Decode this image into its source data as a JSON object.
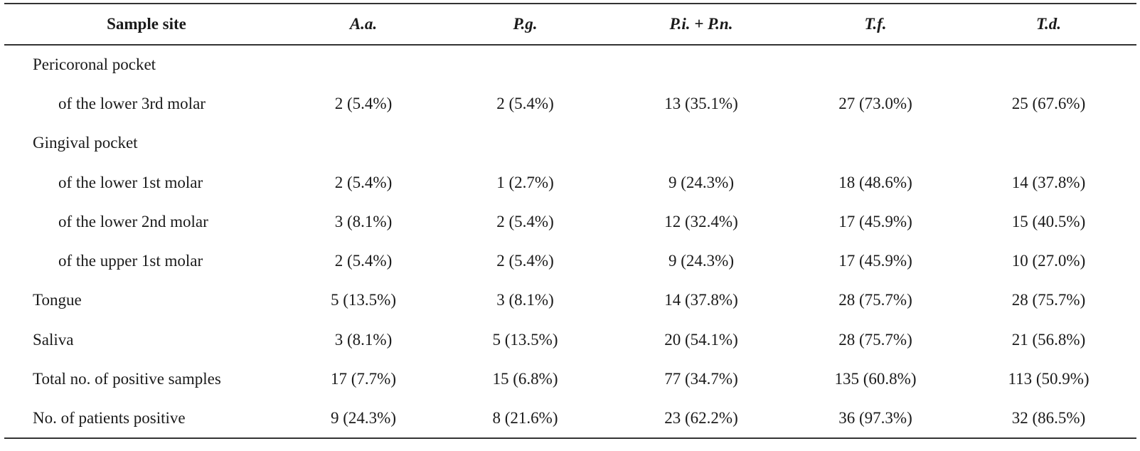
{
  "table": {
    "headers": [
      "Sample site",
      "A.a.",
      "P.g.",
      "P.i. + P.n.",
      "T.f.",
      "T.d."
    ],
    "rows": [
      {
        "label": "Pericoronal pocket",
        "indent": false,
        "values": [
          "",
          "",
          "",
          "",
          ""
        ]
      },
      {
        "label": "of the lower 3rd molar",
        "indent": true,
        "values": [
          "2 (5.4%)",
          "2 (5.4%)",
          "13 (35.1%)",
          "27 (73.0%)",
          "25 (67.6%)"
        ]
      },
      {
        "label": "Gingival pocket",
        "indent": false,
        "values": [
          "",
          "",
          "",
          "",
          ""
        ]
      },
      {
        "label": "of the lower 1st molar",
        "indent": true,
        "values": [
          "2 (5.4%)",
          "1 (2.7%)",
          "9 (24.3%)",
          "18 (48.6%)",
          "14 (37.8%)"
        ]
      },
      {
        "label": "of the lower 2nd molar",
        "indent": true,
        "values": [
          "3 (8.1%)",
          "2 (5.4%)",
          "12 (32.4%)",
          "17 (45.9%)",
          "15 (40.5%)"
        ]
      },
      {
        "label": "of the upper 1st molar",
        "indent": true,
        "values": [
          "2 (5.4%)",
          "2 (5.4%)",
          "9 (24.3%)",
          "17 (45.9%)",
          "10 (27.0%)"
        ]
      },
      {
        "label": "Tongue",
        "indent": false,
        "values": [
          "5 (13.5%)",
          "3 (8.1%)",
          "14 (37.8%)",
          "28 (75.7%)",
          "28 (75.7%)"
        ]
      },
      {
        "label": "Saliva",
        "indent": false,
        "values": [
          "3 (8.1%)",
          "5 (13.5%)",
          "20 (54.1%)",
          "28 (75.7%)",
          "21 (56.8%)"
        ]
      },
      {
        "label": "Total no. of positive samples",
        "indent": false,
        "values": [
          "17 (7.7%)",
          "15 (6.8%)",
          "77 (34.7%)",
          "135 (60.8%)",
          "113 (50.9%)"
        ]
      },
      {
        "label": "No. of patients positive",
        "indent": false,
        "values": [
          "9 (24.3%)",
          "8 (21.6%)",
          "23 (62.2%)",
          "36 (97.3%)",
          "32 (86.5%)"
        ]
      }
    ]
  }
}
